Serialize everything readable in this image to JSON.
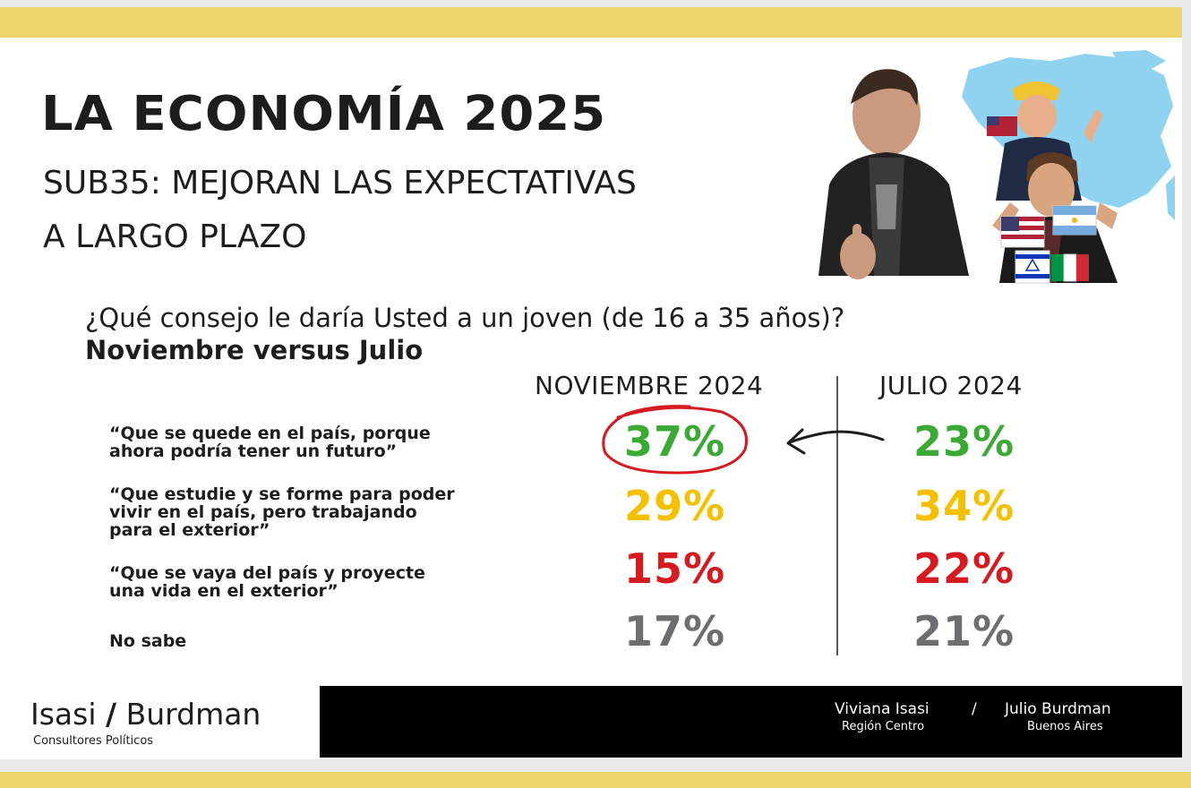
{
  "title": "LA ECONOMÍA 2025",
  "subtitle_lines": [
    "SUB35: MEJORAN LAS EXPECTATIVAS",
    "A LARGO PLAZO"
  ],
  "question_line1": "¿Qué consejo le daría Usted a un joven (de 16 a 35 años)?",
  "question_line2": "Noviembre versus Julio",
  "colors": {
    "band": "#ecd56d",
    "green": "#3aaa35",
    "yellow": "#f5c000",
    "red": "#d71920",
    "gray": "#6d6e71",
    "text": "#1d1d1b"
  },
  "chart_data": {
    "type": "table",
    "columns": [
      "NOVIEMBRE 2024",
      "JULIO 2024"
    ],
    "rows": [
      {
        "label_lines": [
          "“Que se quede en el país, porque",
          "ahora podría tener un futuro”"
        ],
        "values": [
          "37%",
          "23%"
        ],
        "color": "#3aaa35",
        "highlighted": "NOVIEMBRE 2024"
      },
      {
        "label_lines": [
          "“Que estudie y se forme para poder",
          "vivir en el país, pero trabajando",
          "para el exterior”"
        ],
        "values": [
          "29%",
          "34%"
        ],
        "color": "#f5c000"
      },
      {
        "label_lines": [
          "“Que se vaya del país y proyecte",
          "una vida en el exterior”"
        ],
        "values": [
          "15%",
          "22%"
        ],
        "color": "#d71920"
      },
      {
        "label_lines": [
          "No sabe"
        ],
        "values": [
          "17%",
          "21%"
        ],
        "color": "#6d6e71"
      }
    ],
    "annotation": "arrow from JULIO 2024 to NOVIEMBRE 2024 on first row; circle around 37%"
  },
  "footer": {
    "brand_left": "Isasi",
    "brand_slash": "/",
    "brand_right": "Burdman",
    "brand_sub": "Consultores Políticos",
    "person1": {
      "name": "Viviana Isasi",
      "region": "Región Centro"
    },
    "separator": "/",
    "person2": {
      "name": "Julio Burdman",
      "region": "Buenos Aires"
    }
  }
}
